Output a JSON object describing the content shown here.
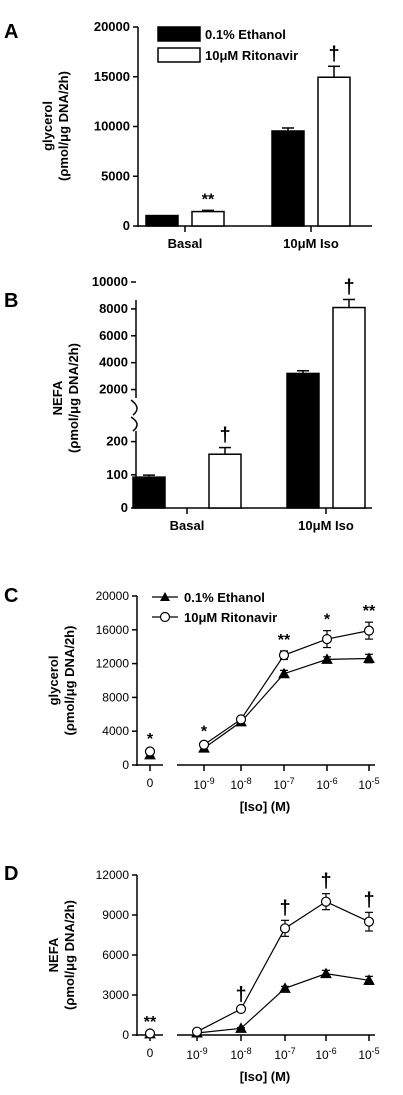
{
  "chart_data": [
    {
      "panel": "A",
      "type": "bar",
      "categories": [
        "Basal",
        "10μM Iso"
      ],
      "series": [
        {
          "name": "0.1% Ethanol",
          "values": [
            1050,
            9550
          ],
          "errors": [
            0,
            300
          ],
          "color": "#000000"
        },
        {
          "name": "10μM Ritonavir",
          "values": [
            1450,
            14950
          ],
          "errors": [
            120,
            1100
          ],
          "color": "#ffffff"
        }
      ],
      "significance": [
        {
          "category": 0,
          "series": 1,
          "mark": "**"
        },
        {
          "category": 1,
          "series": 1,
          "mark": "†"
        }
      ],
      "ylabel": [
        "glycerol",
        "(ρmol/μg DNA/2h)"
      ],
      "ylim": [
        0,
        20000
      ],
      "yticks": [
        "0",
        "5000",
        "10000",
        "15000",
        "20000"
      ],
      "legend": "top-left"
    },
    {
      "panel": "B",
      "type": "bar",
      "categories": [
        "Basal",
        "10μM Iso"
      ],
      "series": [
        {
          "name": "0.1% Ethanol",
          "values": [
            93,
            3200
          ],
          "errors": [
            6,
            200
          ],
          "color": "#000000"
        },
        {
          "name": "10μM Ritonavir",
          "values": [
            162,
            8100
          ],
          "errors": [
            20,
            600
          ],
          "color": "#ffffff"
        }
      ],
      "significance": [
        {
          "category": 0,
          "series": 1,
          "mark": "†"
        },
        {
          "category": 1,
          "series": 1,
          "mark": "†"
        }
      ],
      "ylabel": [
        "NEFA",
        "(ρmol/μg DNA/2h)"
      ],
      "axis_break": true,
      "ylim_lower": [
        0,
        250
      ],
      "ylim_upper": [
        1000,
        10000
      ],
      "yticks_lower": [
        "0",
        "100",
        "200"
      ],
      "yticks_upper": [
        "2000",
        "4000",
        "6000",
        "8000",
        "10000"
      ]
    },
    {
      "panel": "C",
      "type": "line",
      "x": [
        "0",
        "10-9",
        "10-8",
        "10-7",
        "10-6",
        "10-5"
      ],
      "x_tick_base": "10",
      "x_tick_exponents": [
        "-9",
        "-8",
        "-7",
        "-6",
        "-5"
      ],
      "series": [
        {
          "name": "0.1% Ethanol",
          "marker": "filled-triangle",
          "values": [
            1200,
            2000,
            5100,
            10800,
            12500,
            12600
          ],
          "errors": [
            150,
            200,
            200,
            400,
            300,
            500
          ]
        },
        {
          "name": "10μM Ritonavir",
          "marker": "open-circle",
          "values": [
            1600,
            2400,
            5400,
            13000,
            14900,
            15900
          ],
          "errors": [
            200,
            250,
            300,
            500,
            1000,
            1000
          ]
        }
      ],
      "significance": [
        "*",
        "*",
        "",
        "**",
        "*",
        "**"
      ],
      "xlabel": "[Iso] (M)",
      "ylabel": [
        "glycerol",
        "(ρmol/μg DNA/2h)"
      ],
      "ylim": [
        0,
        20000
      ],
      "yticks": [
        "0",
        "4000",
        "8000",
        "12000",
        "16000",
        "20000"
      ],
      "legend": "top-left"
    },
    {
      "panel": "D",
      "type": "line",
      "x": [
        "0",
        "10-9",
        "10-8",
        "10-7",
        "10-6",
        "10-5"
      ],
      "x_tick_base": "10",
      "x_tick_exponents": [
        "-9",
        "-8",
        "-7",
        "-6",
        "-5"
      ],
      "series": [
        {
          "name": "0.1% Ethanol",
          "marker": "filled-triangle",
          "values": [
            80,
            150,
            500,
            3500,
            4600,
            4100
          ],
          "errors": [
            30,
            40,
            60,
            150,
            250,
            300
          ]
        },
        {
          "name": "10μM Ritonavir",
          "marker": "open-circle",
          "values": [
            110,
            250,
            1950,
            8000,
            10000,
            8500
          ],
          "errors": [
            40,
            60,
            150,
            600,
            600,
            700
          ]
        }
      ],
      "significance": [
        "**",
        "",
        "†",
        "†",
        "†",
        "†"
      ],
      "xlabel": "[Iso] (M)",
      "ylabel": [
        "NEFA",
        "(ρmol/μg DNA/2h)"
      ],
      "ylim": [
        0,
        12000
      ],
      "yticks": [
        "0",
        "3000",
        "6000",
        "9000",
        "12000"
      ]
    }
  ]
}
